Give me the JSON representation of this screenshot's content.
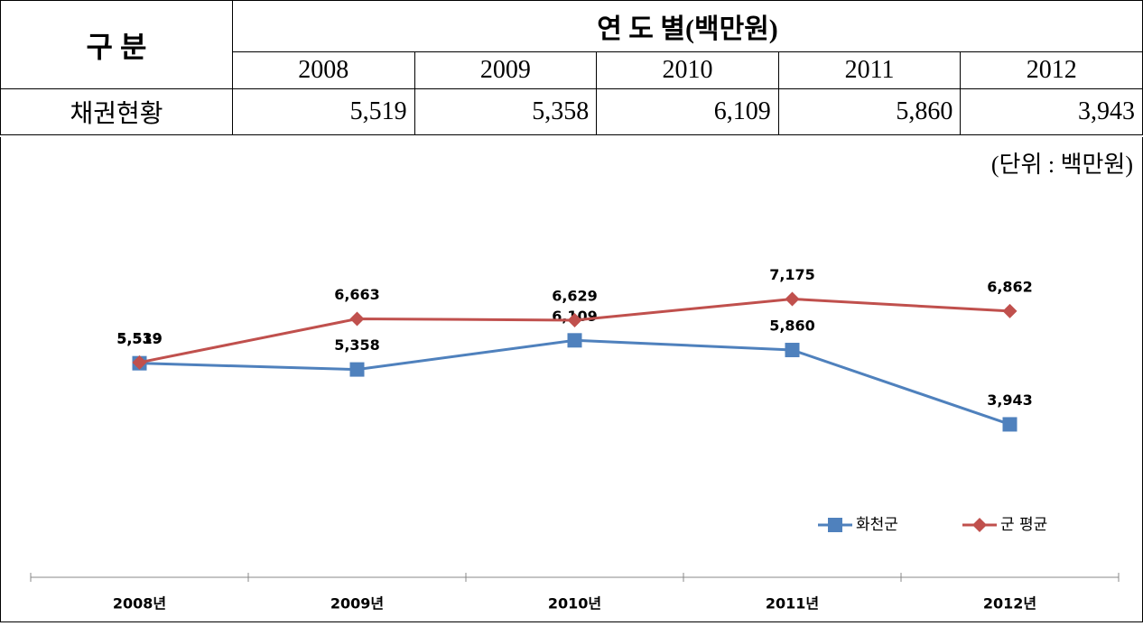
{
  "table": {
    "header": [
      "구  분",
      "연  도  별(백만원)"
    ],
    "years": [
      "2008",
      "2009",
      "2010",
      "2011",
      "2012"
    ],
    "rows": [
      [
        "채권현황",
        "5,519",
        "5,358",
        "6,109",
        "5,860",
        "3,943"
      ]
    ]
  },
  "chart_data": {
    "type": "line",
    "unit": "(단위 : 백만원)",
    "categories": [
      "2008년",
      "2009년",
      "2010년",
      "2011년",
      "2012년"
    ],
    "ylim": [
      0,
      10000
    ],
    "series": [
      {
        "name": "화천군",
        "color": "#4f81bd",
        "marker": "square",
        "values": [
          5519,
          5358,
          6109,
          5860,
          3943
        ],
        "value_labels": [
          "5,519",
          "5,358",
          "6,109",
          "5,860",
          "3,943"
        ]
      },
      {
        "name": "군 평균",
        "color": "#c0504d",
        "marker": "diamond",
        "values": [
          5539,
          6663,
          6629,
          7175,
          6862
        ],
        "value_labels": [
          "5,539",
          "6,663",
          "6,629",
          "7,175",
          "6,862"
        ]
      }
    ]
  }
}
